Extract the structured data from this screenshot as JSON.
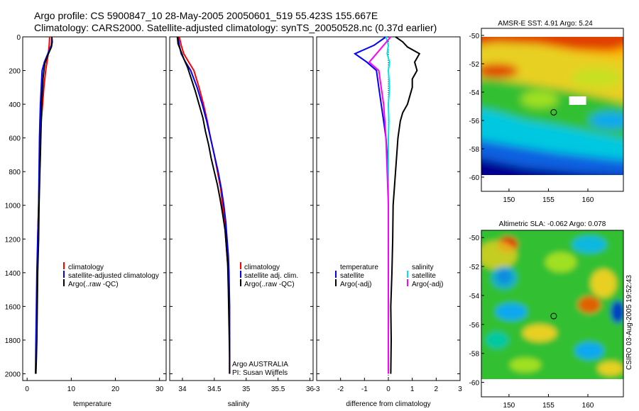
{
  "header": {
    "line1": "Argo profile: CS 5900847_10 28-May-2005 20050601_519 55.423S 155.667E",
    "line2": "Climatology: CARS2000. Satellite-adjusted climatology: synTS_20050528.nc (0.37d earlier)"
  },
  "colors": {
    "climatology": "#ff0000",
    "satellite": "#0000ff",
    "argo": "#000000",
    "salinity_satellite": "#00e5e5",
    "salinity_argo_adj": "#ff00ff"
  },
  "chart_data": [
    {
      "type": "line",
      "id": "temperature",
      "xlabel": "temperature",
      "ylabel": "",
      "xlim": [
        -1,
        31.5
      ],
      "ylim": [
        2040,
        0
      ],
      "xticks": [
        0,
        10,
        20,
        30
      ],
      "yticks": [
        0,
        200,
        400,
        600,
        800,
        1000,
        1200,
        1400,
        1600,
        1800,
        2000
      ],
      "series": [
        {
          "name": "climatology",
          "color": "#ff0000",
          "points": [
            [
              5.1,
              0
            ],
            [
              5.0,
              50
            ],
            [
              4.8,
              100
            ],
            [
              4.5,
              150
            ],
            [
              4.2,
              200
            ],
            [
              3.8,
              300
            ],
            [
              3.5,
              400
            ],
            [
              3.2,
              500
            ],
            [
              3.0,
              600
            ],
            [
              2.8,
              800
            ],
            [
              2.6,
              1000
            ],
            [
              2.4,
              1200
            ],
            [
              2.3,
              1400
            ]
          ]
        },
        {
          "name": "satellite-adjusted climatology",
          "color": "#0000ff",
          "points": [
            [
              5.6,
              0
            ],
            [
              5.5,
              50
            ],
            [
              4.7,
              100
            ],
            [
              3.9,
              150
            ],
            [
              3.4,
              200
            ],
            [
              3.2,
              300
            ],
            [
              3.0,
              400
            ],
            [
              2.9,
              500
            ],
            [
              2.8,
              600
            ],
            [
              2.7,
              800
            ],
            [
              2.6,
              1000
            ],
            [
              2.4,
              1200
            ],
            [
              2.2,
              1400
            ],
            [
              2.1,
              1600
            ],
            [
              2.0,
              1800
            ],
            [
              1.9,
              2000
            ]
          ]
        },
        {
          "name": "Argo(..raw -QC)",
          "color": "#000000",
          "points": [
            [
              5.6,
              0
            ],
            [
              5.7,
              30
            ],
            [
              5.5,
              60
            ],
            [
              5.0,
              90
            ],
            [
              4.5,
              120
            ],
            [
              4.0,
              160
            ],
            [
              3.8,
              200
            ],
            [
              3.6,
              250
            ],
            [
              3.5,
              300
            ],
            [
              3.4,
              350
            ],
            [
              3.3,
              400
            ],
            [
              3.2,
              500
            ],
            [
              3.1,
              600
            ],
            [
              3.0,
              700
            ],
            [
              2.9,
              800
            ],
            [
              2.8,
              900
            ],
            [
              2.7,
              1000
            ],
            [
              2.6,
              1200
            ],
            [
              2.4,
              1400
            ],
            [
              2.3,
              1600
            ],
            [
              2.2,
              1800
            ],
            [
              2.1,
              1900
            ],
            [
              2.0,
              2000
            ]
          ]
        }
      ],
      "legend": [
        "climatology",
        "satellite-adjusted climatology",
        "Argo(..raw -QC)"
      ]
    },
    {
      "type": "line",
      "id": "salinity",
      "xlabel": "salinity",
      "ylabel": "",
      "xlim": [
        33.8,
        36.05
      ],
      "ylim": [
        2040,
        0
      ],
      "xticks": [
        34,
        34.5,
        35,
        35.5,
        36
      ],
      "series": [
        {
          "name": "climatology",
          "color": "#ff0000",
          "points": [
            [
              33.95,
              0
            ],
            [
              33.98,
              50
            ],
            [
              34.02,
              100
            ],
            [
              34.1,
              150
            ],
            [
              34.18,
              200
            ],
            [
              34.26,
              300
            ],
            [
              34.33,
              400
            ],
            [
              34.39,
              500
            ],
            [
              34.44,
              600
            ],
            [
              34.5,
              700
            ],
            [
              34.55,
              800
            ],
            [
              34.6,
              900
            ],
            [
              34.63,
              1000
            ],
            [
              34.66,
              1100
            ],
            [
              34.68,
              1200
            ],
            [
              34.7,
              1300
            ],
            [
              34.72,
              1400
            ],
            [
              34.73,
              1600
            ],
            [
              34.74,
              1800
            ],
            [
              34.74,
              2000
            ]
          ]
        },
        {
          "name": "satellite adj. clim.",
          "color": "#0000ff",
          "points": [
            [
              33.93,
              0
            ],
            [
              33.95,
              50
            ],
            [
              33.98,
              100
            ],
            [
              34.05,
              150
            ],
            [
              34.13,
              200
            ],
            [
              34.23,
              300
            ],
            [
              34.31,
              400
            ],
            [
              34.38,
              500
            ],
            [
              34.44,
              600
            ],
            [
              34.5,
              700
            ],
            [
              34.56,
              800
            ],
            [
              34.61,
              900
            ],
            [
              34.65,
              1000
            ],
            [
              34.68,
              1100
            ],
            [
              34.7,
              1200
            ],
            [
              34.72,
              1300
            ],
            [
              34.73,
              1400
            ],
            [
              34.74,
              1600
            ],
            [
              34.74,
              1800
            ],
            [
              34.74,
              2000
            ]
          ]
        },
        {
          "name": "Argo(..raw -QC)",
          "color": "#000000",
          "points": [
            [
              33.92,
              0
            ],
            [
              33.93,
              40
            ],
            [
              33.97,
              80
            ],
            [
              34.02,
              130
            ],
            [
              34.08,
              180
            ],
            [
              34.14,
              250
            ],
            [
              34.2,
              320
            ],
            [
              34.26,
              400
            ],
            [
              34.32,
              480
            ],
            [
              34.36,
              560
            ],
            [
              34.41,
              640
            ],
            [
              34.45,
              720
            ],
            [
              34.5,
              800
            ],
            [
              34.55,
              880
            ],
            [
              34.59,
              960
            ],
            [
              34.63,
              1050
            ],
            [
              34.67,
              1150
            ],
            [
              34.69,
              1250
            ],
            [
              34.71,
              1350
            ],
            [
              34.72,
              1500
            ],
            [
              34.73,
              1700
            ],
            [
              34.74,
              1900
            ],
            [
              34.74,
              2000
            ]
          ]
        }
      ],
      "legend": [
        "climatology",
        "satellite adj. clim.",
        "Argo(..raw -QC)"
      ],
      "annotations": [
        "Argo AUSTRALIA",
        "PI: Susan Wijffels"
      ]
    },
    {
      "type": "line",
      "id": "difference",
      "xlabel": "difference from climatology",
      "ylabel": "",
      "xlim": [
        -3,
        3
      ],
      "ylim": [
        2040,
        0
      ],
      "xticks": [
        -3,
        -2,
        -1,
        0,
        1,
        2,
        3
      ],
      "zero_line": true,
      "series": [
        {
          "name": "temperature satellite",
          "color": "#0000ff",
          "points": [
            [
              -0.1,
              0
            ],
            [
              -0.6,
              50
            ],
            [
              -1.4,
              100
            ],
            [
              -0.9,
              150
            ],
            [
              -0.5,
              200
            ],
            [
              -0.4,
              300
            ],
            [
              -0.3,
              400
            ],
            [
              -0.2,
              500
            ],
            [
              -0.1,
              600
            ],
            [
              0,
              800
            ],
            [
              0,
              1000
            ]
          ]
        },
        {
          "name": "temperature Argo(-adj)",
          "color": "#000000",
          "points": [
            [
              0.3,
              0
            ],
            [
              0.6,
              30
            ],
            [
              0.8,
              60
            ],
            [
              1.3,
              100
            ],
            [
              1.1,
              150
            ],
            [
              1.2,
              200
            ],
            [
              1.0,
              250
            ],
            [
              1.0,
              300
            ],
            [
              0.9,
              350
            ],
            [
              0.8,
              400
            ],
            [
              0.6,
              450
            ],
            [
              0.5,
              500
            ],
            [
              0.4,
              600
            ],
            [
              0.35,
              700
            ],
            [
              0.3,
              800
            ],
            [
              0.25,
              900
            ],
            [
              0.2,
              1000
            ],
            [
              0.18,
              1200
            ],
            [
              0.15,
              1400
            ],
            [
              0.1,
              1600
            ],
            [
              0.12,
              1800
            ],
            [
              0.1,
              2000
            ]
          ]
        },
        {
          "name": "salinity satellite",
          "color": "#00e5e5",
          "points": [
            [
              -0.1,
              0
            ],
            [
              0.0,
              50
            ],
            [
              -0.05,
              100
            ],
            [
              0.05,
              150
            ],
            [
              0.0,
              200
            ],
            [
              0.05,
              300
            ],
            [
              0.0,
              400
            ],
            [
              0.02,
              500
            ],
            [
              0.0,
              600
            ],
            [
              0.0,
              800
            ],
            [
              0.0,
              1000
            ],
            [
              0.0,
              1200
            ],
            [
              0.0,
              1400
            ],
            [
              0.0,
              1600
            ],
            [
              0.0,
              1800
            ],
            [
              0.0,
              2000
            ]
          ]
        },
        {
          "name": "salinity Argo(-adj)",
          "color": "#ff00ff",
          "points": [
            [
              0.1,
              0
            ],
            [
              -0.2,
              50
            ],
            [
              -0.5,
              100
            ],
            [
              -0.8,
              150
            ],
            [
              -0.4,
              200
            ],
            [
              -0.3,
              300
            ],
            [
              -0.2,
              400
            ],
            [
              -0.15,
              500
            ],
            [
              -0.1,
              600
            ],
            [
              -0.05,
              800
            ],
            [
              0.0,
              1000
            ],
            [
              0.0,
              1200
            ],
            [
              0.0,
              1400
            ],
            [
              0.0,
              1600
            ],
            [
              0.0,
              1800
            ],
            [
              0.0,
              2000
            ]
          ]
        }
      ],
      "legend_left": {
        "title": "temperature",
        "items": [
          "satellite",
          "Argo(-adj)"
        ]
      },
      "legend_right": {
        "title": "salinity",
        "items": [
          "satellite",
          "Argo(-adj)"
        ]
      }
    },
    {
      "type": "heatmap",
      "id": "sst-map",
      "title": "AMSR-E SST: 4.91 Argo: 5.24",
      "xlim": [
        146.5,
        164.5
      ],
      "ylim": [
        -61,
        -49.5
      ],
      "xticks": [
        150,
        155,
        160
      ],
      "yticks": [
        -50,
        -52,
        -54,
        -56,
        -58,
        -60
      ],
      "data_extent": {
        "y_min": -60.3
      },
      "marker": {
        "lon": 155.667,
        "lat": -55.423
      },
      "label_box": {
        "lon": 158.7,
        "lat": -54.6
      }
    },
    {
      "type": "heatmap",
      "id": "sla-map",
      "title": "Altimetric SLA: -0.062 Argo: 0.078",
      "xlim": [
        146.5,
        164.5
      ],
      "ylim": [
        -61,
        -49.5
      ],
      "xticks": [
        150,
        155,
        160
      ],
      "yticks": [
        -50,
        -52,
        -54,
        -56,
        -58,
        -60
      ],
      "marker": {
        "lon": 155.667,
        "lat": -55.423
      },
      "label_lon_lat": [
        158.7,
        -54.4
      ]
    }
  ],
  "footer": {
    "credit": "CSIRO 03-Aug-2005 19:52:43"
  }
}
